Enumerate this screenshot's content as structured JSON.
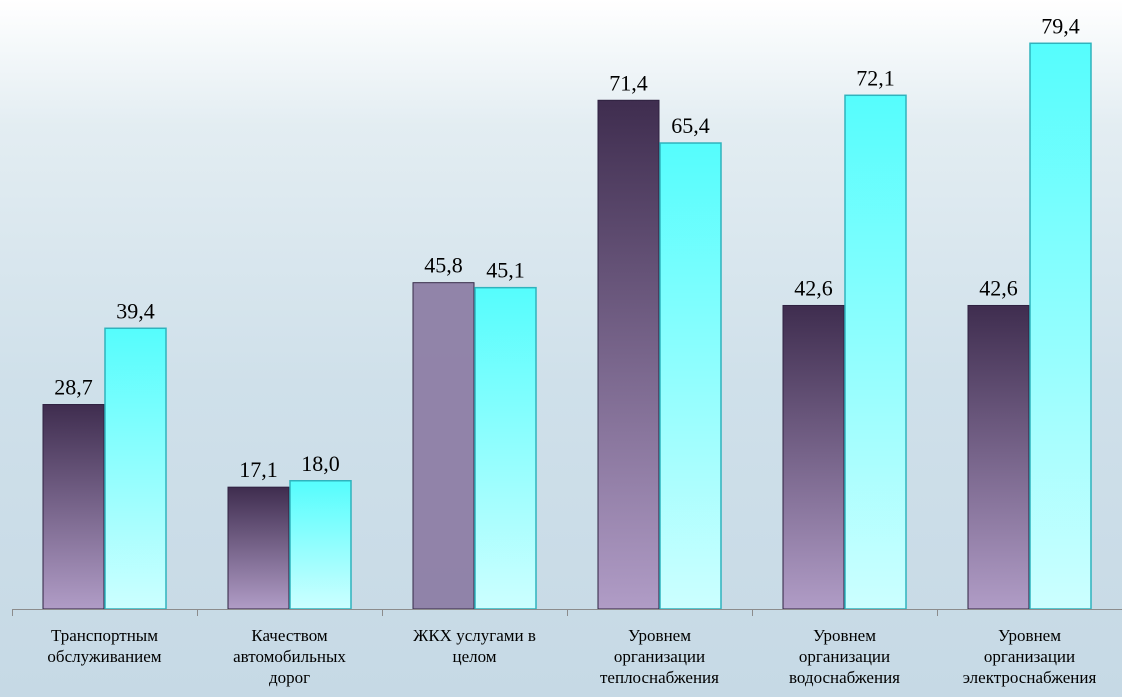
{
  "chart_data": {
    "type": "bar",
    "categories": [
      [
        "Транспортным",
        "обслуживанием"
      ],
      [
        "Качеством",
        "автомобильных",
        "дорог"
      ],
      [
        "ЖКХ услугами в",
        "целом"
      ],
      [
        "Уровнем",
        "организации",
        "теплоснабжения"
      ],
      [
        "Уровнем",
        "организации",
        "водоснабжения"
      ],
      [
        "Уровнем",
        "организации",
        "электроснабжения"
      ]
    ],
    "series": [
      {
        "values": [
          28.7,
          17.1,
          45.8,
          71.4,
          42.6,
          42.6
        ],
        "labels": [
          "28,7",
          "17,1",
          "45,8",
          "71,4",
          "42,6",
          "42,6"
        ],
        "color_top": "#3f2d4f",
        "color_bottom": "#b09cc6",
        "color_flat": "#8e7fa6"
      },
      {
        "values": [
          39.4,
          18.0,
          45.1,
          65.4,
          72.1,
          79.4
        ],
        "labels": [
          "39,4",
          "18,0",
          "45,1",
          "65,4",
          "72,1",
          "79,4"
        ],
        "color_top": "#55fdfd",
        "color_bottom": "#ccffff",
        "stroke": "#2fb3bd"
      }
    ],
    "ylim": [
      0,
      100
    ],
    "grid": false,
    "legend": "none"
  }
}
